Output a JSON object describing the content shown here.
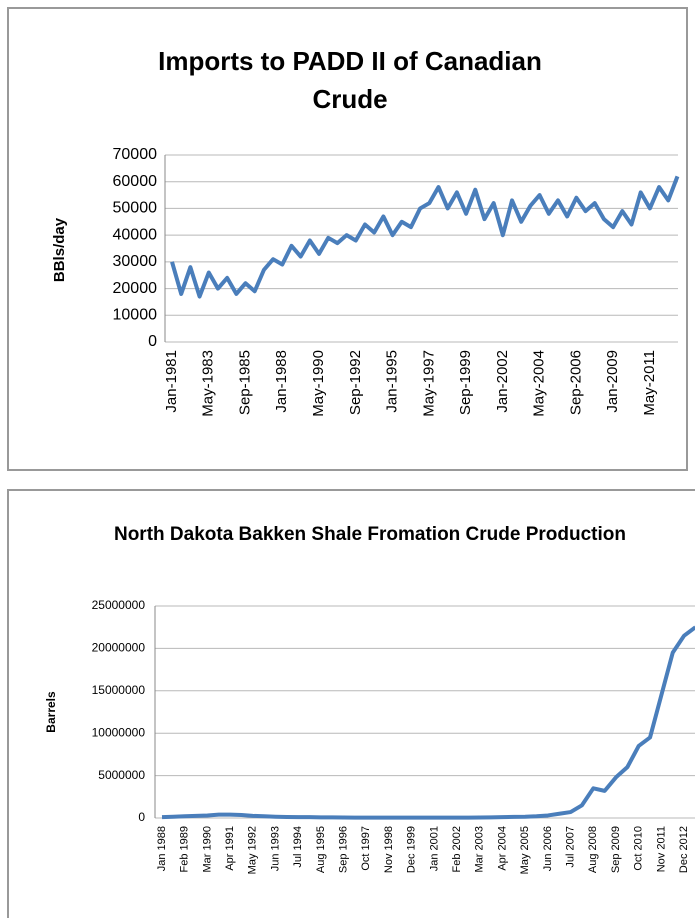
{
  "chart_data": [
    {
      "type": "line",
      "title": "Imports to PADD II of Canadian Crude",
      "y_label": "BBls/day",
      "categories": [
        "Jan-1981",
        null,
        null,
        null,
        "May-1983",
        null,
        null,
        null,
        "Sep-1985",
        null,
        null,
        null,
        "Jan-1988",
        null,
        null,
        null,
        "May-1990",
        null,
        null,
        null,
        "Sep-1992",
        null,
        null,
        null,
        "Jan-1995",
        null,
        null,
        null,
        "May-1997",
        null,
        null,
        null,
        "Sep-1999",
        null,
        null,
        null,
        "Jan-2002",
        null,
        null,
        null,
        "May-2004",
        null,
        null,
        null,
        "Sep-2006",
        null,
        null,
        null,
        "Jan-2009",
        null,
        null,
        null,
        "May-2011",
        null,
        null,
        null
      ],
      "series": [
        {
          "color": "#4a7ebb",
          "values": [
            30000,
            18000,
            28000,
            17000,
            26000,
            20000,
            24000,
            18000,
            22000,
            19000,
            27000,
            31000,
            29000,
            36000,
            32000,
            38000,
            33000,
            39000,
            37000,
            40000,
            38000,
            44000,
            41000,
            47000,
            40000,
            45000,
            43000,
            50000,
            52000,
            58000,
            50000,
            56000,
            48000,
            57000,
            46000,
            52000,
            40000,
            53000,
            45000,
            51000,
            55000,
            48000,
            53000,
            47000,
            54000,
            49000,
            52000,
            46000,
            43000,
            49000,
            44000,
            56000,
            50000,
            58000,
            53000,
            62000
          ]
        }
      ],
      "ylim": [
        0,
        70000
      ],
      "yticks": [
        0,
        10000,
        20000,
        30000,
        40000,
        50000,
        60000,
        70000
      ],
      "grid": true
    },
    {
      "type": "line",
      "title": "North Dakota Bakken Shale  Fromation Crude Production",
      "y_label": "Barrels",
      "categories": [
        "Jan 1988",
        null,
        "Feb 1989",
        null,
        "Mar 1990",
        null,
        "Apr 1991",
        null,
        "May 1992",
        null,
        "Jun 1993",
        null,
        "Jul 1994",
        null,
        "Aug 1995",
        null,
        "Sep 1996",
        null,
        "Oct 1997",
        null,
        "Nov 1998",
        null,
        "Dec 1999",
        null,
        "Jan 2001",
        null,
        "Feb 2002",
        null,
        "Mar 2003",
        null,
        "Apr 2004",
        null,
        "May 2005",
        null,
        "Jun 2006",
        null,
        "Jul 2007",
        null,
        "Aug 2008",
        null,
        "Sep 2009",
        null,
        "Oct 2010",
        null,
        "Nov 2011",
        null,
        "Dec 2012",
        null
      ],
      "series": [
        {
          "color": "#4a7ebb",
          "values": [
            100000,
            150000,
            200000,
            250000,
            300000,
            400000,
            400000,
            350000,
            250000,
            200000,
            150000,
            120000,
            100000,
            100000,
            80000,
            70000,
            60000,
            50000,
            50000,
            50000,
            40000,
            40000,
            40000,
            40000,
            40000,
            40000,
            40000,
            50000,
            60000,
            80000,
            100000,
            130000,
            150000,
            200000,
            300000,
            500000,
            700000,
            1500000,
            3500000,
            3200000,
            4800000,
            6000000,
            8500000,
            9500000,
            14500000,
            19500000,
            21500000,
            22500000
          ]
        }
      ],
      "ylim": [
        0,
        25000000
      ],
      "yticks": [
        0,
        5000000,
        10000000,
        15000000,
        20000000,
        25000000
      ],
      "grid": true
    }
  ]
}
